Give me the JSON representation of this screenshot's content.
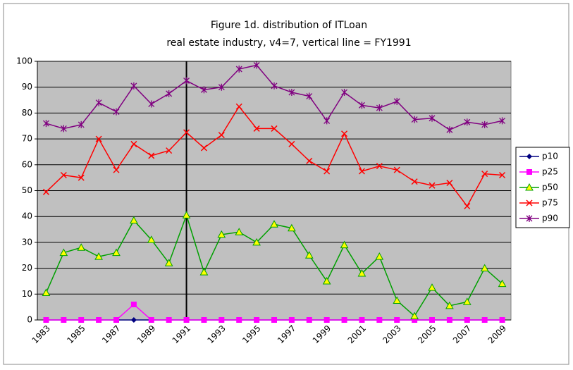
{
  "chart_data": {
    "type": "line",
    "title": "Figure 1d.  distribution of ITLoan",
    "subtitle": "real estate industry,  v4=7, vertical line = FY1991",
    "x": [
      1983,
      1984,
      1985,
      1986,
      1987,
      1988,
      1989,
      1990,
      1991,
      1992,
      1993,
      1994,
      1995,
      1996,
      1997,
      1998,
      1999,
      2000,
      2001,
      2002,
      2003,
      2004,
      2005,
      2006,
      2007,
      2008,
      2009
    ],
    "xlim": [
      1982.5,
      2009.5
    ],
    "xticks": [
      1983,
      1985,
      1987,
      1989,
      1991,
      1993,
      1995,
      1997,
      1999,
      2001,
      2003,
      2005,
      2007,
      2009
    ],
    "vline": 1991,
    "ylim": [
      0,
      100
    ],
    "yticks": [
      0,
      10,
      20,
      30,
      40,
      50,
      60,
      70,
      80,
      90,
      100
    ],
    "grid": true,
    "legend": "right",
    "series": [
      {
        "name": "p10",
        "color": "#000080",
        "marker": "diamond",
        "values": [
          0,
          0,
          0,
          0,
          0,
          0,
          0,
          0,
          0,
          0,
          0,
          0,
          0,
          0,
          0,
          0,
          0,
          0,
          0,
          0,
          0,
          0,
          0,
          0,
          0,
          0,
          0
        ]
      },
      {
        "name": "p25",
        "color": "#ff00ff",
        "marker": "square",
        "values": [
          0,
          0,
          0,
          0,
          0,
          6,
          0,
          0,
          0,
          0,
          0,
          0,
          0,
          0,
          0,
          0,
          0,
          0,
          0,
          0,
          0,
          0,
          0,
          0,
          0,
          0,
          0
        ]
      },
      {
        "name": "p50",
        "color": "#00a000",
        "marker": "triangle",
        "values": [
          10.5,
          26,
          28,
          24.5,
          26,
          38.5,
          31,
          22,
          40.5,
          18.5,
          33,
          34,
          30,
          37,
          35.5,
          25,
          15,
          29,
          18,
          24.5,
          7.5,
          1.5,
          12.5,
          5.5,
          7,
          20,
          14
        ]
      },
      {
        "name": "p75",
        "color": "#ff0000",
        "marker": "x",
        "values": [
          49.5,
          56,
          55,
          70,
          58,
          68,
          63.5,
          65.5,
          72.5,
          66.5,
          71.5,
          82.5,
          74,
          74,
          68,
          61.5,
          57.5,
          72,
          57.5,
          59.5,
          58,
          53.5,
          52,
          53,
          44,
          56.5,
          56
        ]
      },
      {
        "name": "p90",
        "color": "#800080",
        "marker": "star",
        "values": [
          76,
          74,
          75.5,
          84,
          80.5,
          90.5,
          83.5,
          87.5,
          92.5,
          89,
          90,
          97,
          98.5,
          90.5,
          88,
          86.5,
          77,
          88,
          83,
          82,
          84.5,
          77.5,
          78,
          73.5,
          76.5,
          75.5,
          77
        ]
      }
    ]
  }
}
